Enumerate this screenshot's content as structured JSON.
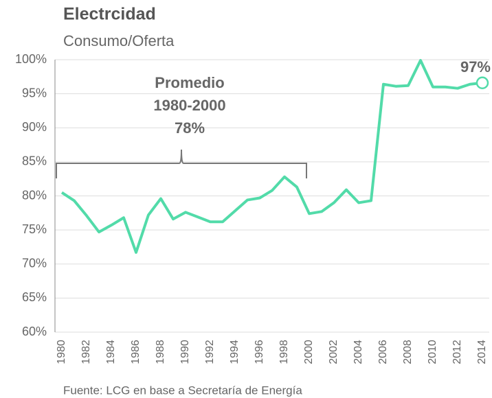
{
  "chart_data": {
    "type": "line",
    "title": "Electrcidad",
    "subtitle": "Consumo/Oferta",
    "source": "Fuente: LCG en base a Secretaría de Energía",
    "bracket_label": [
      "Promedio",
      "1980-2000",
      "78%"
    ],
    "bracket_x": [
      1980,
      2000
    ],
    "end_label": "97%",
    "color": "#52dba9",
    "x": [
      1980,
      1981,
      1982,
      1983,
      1984,
      1985,
      1986,
      1987,
      1988,
      1989,
      1990,
      1991,
      1992,
      1993,
      1994,
      1995,
      1996,
      1997,
      1998,
      1999,
      2000,
      2001,
      2002,
      2003,
      2004,
      2005,
      2006,
      2007,
      2008,
      2009,
      2010,
      2011,
      2012,
      2013,
      2014
    ],
    "values": [
      80.5,
      79.3,
      77.1,
      74.7,
      75.7,
      76.8,
      71.7,
      77.2,
      79.6,
      76.6,
      77.6,
      76.9,
      76.2,
      76.2,
      77.8,
      79.4,
      79.7,
      80.8,
      82.8,
      81.3,
      77.4,
      77.7,
      79.0,
      80.9,
      79.0,
      79.3,
      96.4,
      96.1,
      96.2,
      99.9,
      96.0,
      96.0,
      95.8,
      96.4,
      96.6
    ],
    "xlim": [
      1980,
      2014
    ],
    "xticks": [
      1980,
      1982,
      1984,
      1986,
      1988,
      1990,
      1992,
      1994,
      1996,
      1998,
      2000,
      2002,
      2004,
      2006,
      2008,
      2010,
      2012,
      2014
    ],
    "ylim": [
      60,
      100
    ],
    "yticks": [
      {
        "value": 60,
        "label": "60%"
      },
      {
        "value": 65,
        "label": "65%"
      },
      {
        "value": 70,
        "label": "70%"
      },
      {
        "value": 75,
        "label": "75%"
      },
      {
        "value": 80,
        "label": "80%"
      },
      {
        "value": 85,
        "label": "85%"
      },
      {
        "value": 90,
        "label": "90%"
      },
      {
        "value": 95,
        "label": "95%"
      },
      {
        "value": 100,
        "label": "100%"
      }
    ],
    "grid": true
  }
}
